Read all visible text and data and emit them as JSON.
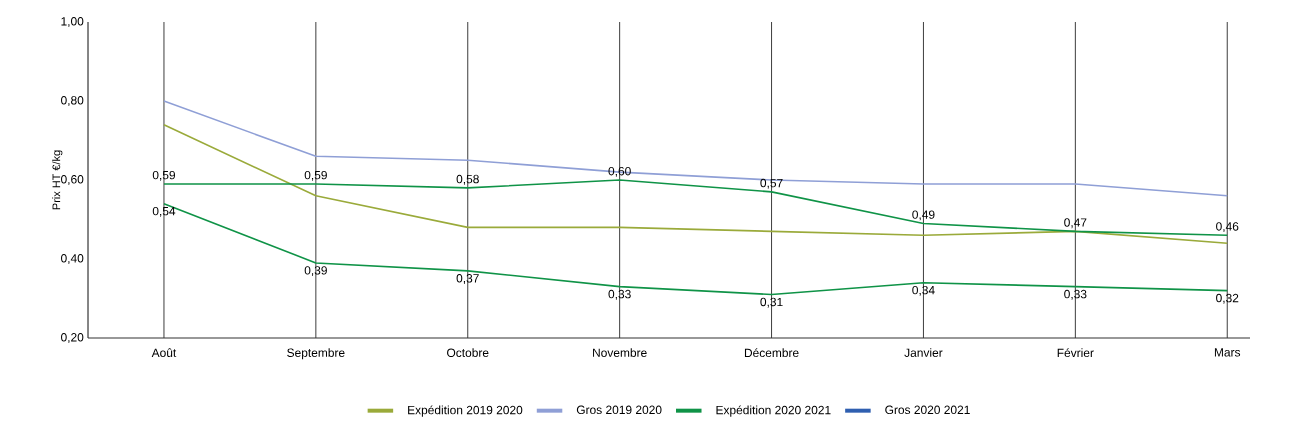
{
  "chart_data": {
    "type": "line",
    "ylabel": "Prix HT €/kg",
    "categories": [
      "Août",
      "Septembre",
      "Octobre",
      "Novembre",
      "Décembre",
      "Janvier",
      "Février",
      "Mars"
    ],
    "ylim": [
      0.2,
      1.0
    ],
    "yticks": [
      {
        "value": 0.2,
        "label": "0,20"
      },
      {
        "value": 0.4,
        "label": "0,40"
      },
      {
        "value": 0.6,
        "label": "0,60"
      },
      {
        "value": 0.8,
        "label": "0,80"
      },
      {
        "value": 1.0,
        "label": "1,00"
      }
    ],
    "grid": "x",
    "legend": "bottom",
    "marker": "none",
    "line_style": "solid",
    "series": [
      {
        "name": "Expédition 2019 2020",
        "color": "#9aaa3a",
        "values": [
          0.74,
          0.56,
          0.48,
          0.48,
          0.47,
          0.46,
          0.47,
          0.44
        ]
      },
      {
        "name": "Gros 2019 2020",
        "color": "#8f9fd6",
        "values": [
          0.8,
          0.66,
          0.65,
          0.62,
          0.6,
          0.59,
          0.59,
          0.56
        ]
      },
      {
        "name": "Expédition 2020 2021",
        "color": "#0f9347",
        "values": [
          0.54,
          0.39,
          0.37,
          0.33,
          0.31,
          0.34,
          0.33,
          0.32
        ],
        "value_labels": [
          "0,54",
          "0,39",
          "0,37",
          "0,33",
          "0,31",
          "0,34",
          "0,33",
          "0,32"
        ]
      },
      {
        "name": "Gros 2020 2021",
        "color": "#2f5fb0",
        "values": [
          null,
          null,
          null,
          null,
          null,
          null,
          null,
          null
        ]
      },
      {
        "color": "#0f9347",
        "values": [
          0.59,
          0.59,
          0.58,
          0.6,
          0.57,
          0.49,
          0.47,
          0.46
        ],
        "value_labels": [
          "0,59",
          "0,59",
          "0,58",
          "0,60",
          "0,57",
          "0,49",
          "0,47",
          "0,46"
        ]
      }
    ]
  }
}
